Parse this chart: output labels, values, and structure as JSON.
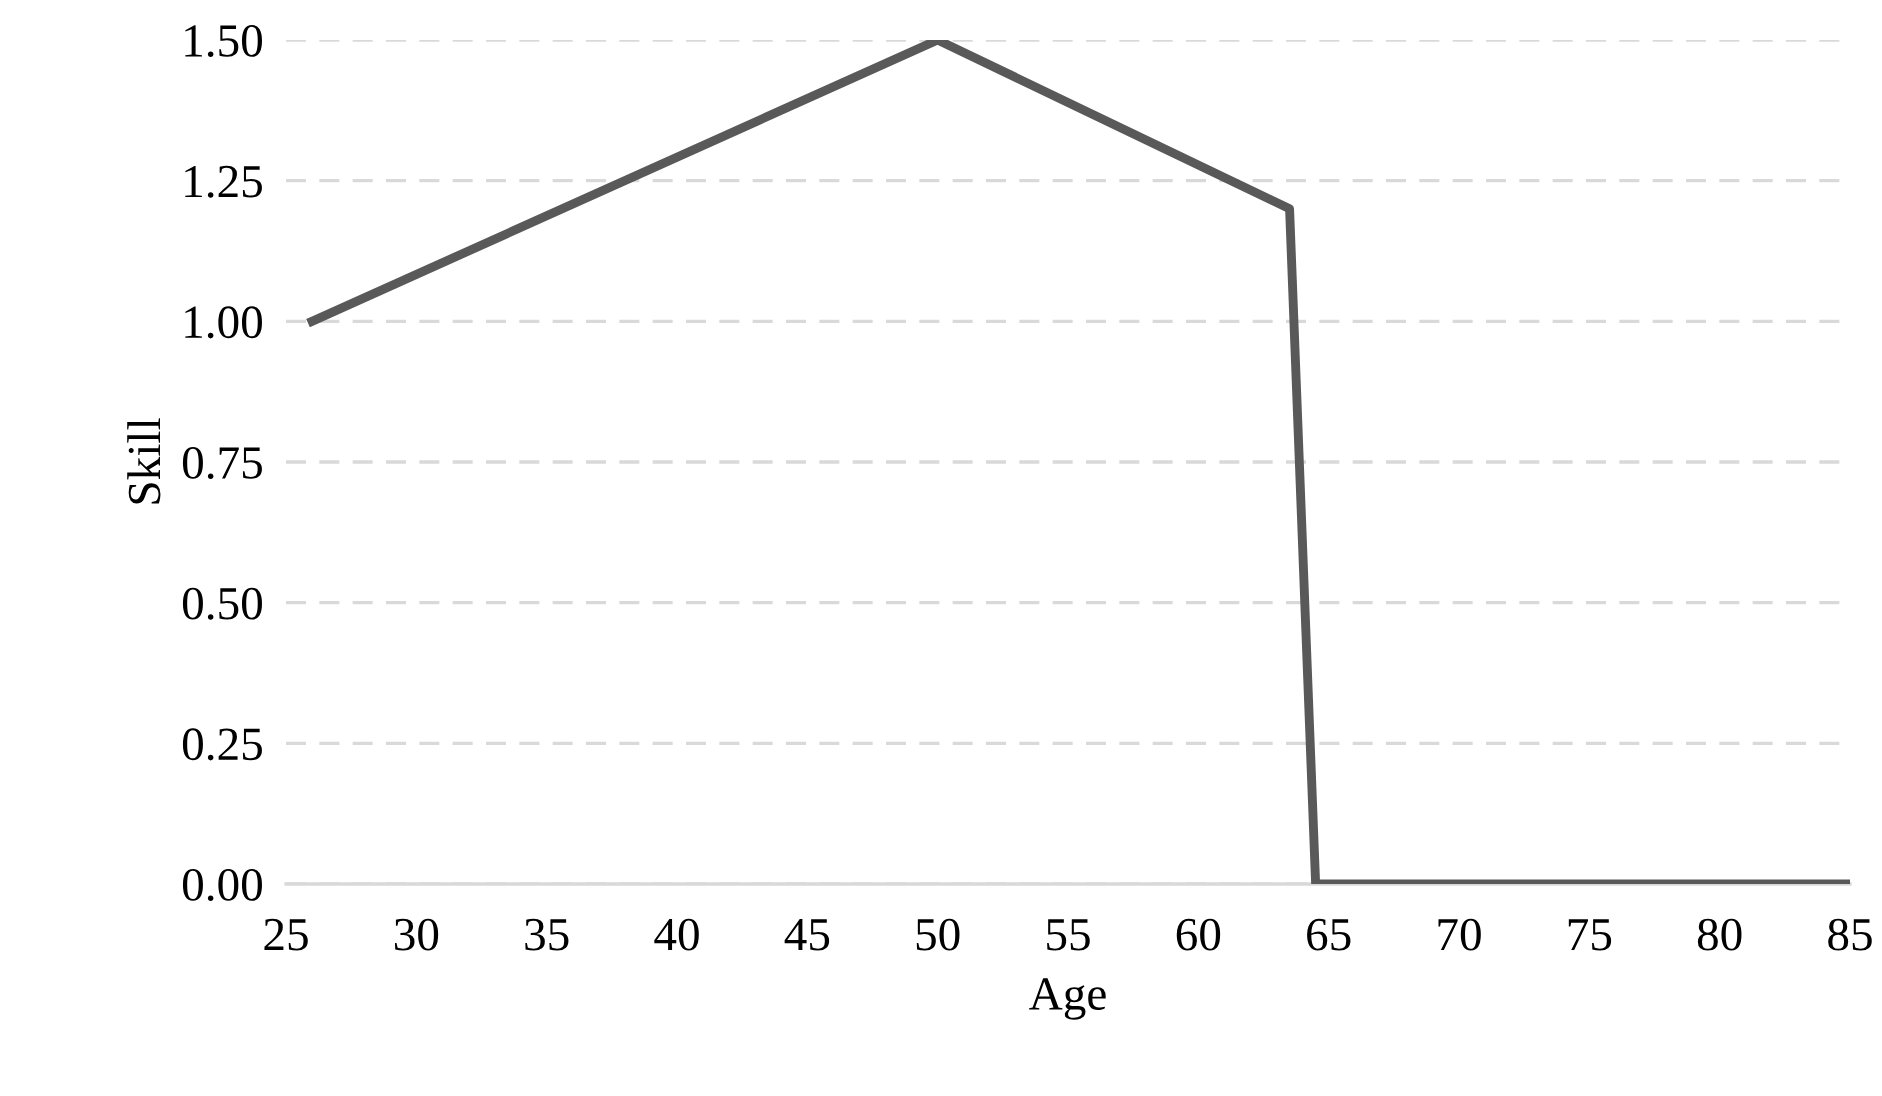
{
  "chart_data": {
    "type": "line",
    "xlabel": "Age",
    "ylabel": "Skill",
    "x": [
      26,
      50,
      63.5,
      64.5,
      85
    ],
    "series": [
      {
        "color": "#595959",
        "values": [
          1.0,
          1.5,
          1.2,
          0,
          0
        ]
      }
    ],
    "xlim": [
      25,
      85
    ],
    "xticks": [
      25,
      30,
      35,
      40,
      45,
      50,
      55,
      60,
      65,
      70,
      75,
      80,
      85
    ],
    "ylim": [
      0,
      1.5
    ],
    "yticks": [
      {
        "value": 0,
        "label": "0.00"
      },
      {
        "value": 0.25,
        "label": "0.25"
      },
      {
        "value": 0.5,
        "label": "0.50"
      },
      {
        "value": 0.75,
        "label": "0.75"
      },
      {
        "value": 1.0,
        "label": "1.00"
      },
      {
        "value": 1.25,
        "label": "1.25"
      },
      {
        "value": 1.5,
        "label": "1.50"
      }
    ],
    "grid": "y",
    "line_style": "solid",
    "marker": "none"
  }
}
